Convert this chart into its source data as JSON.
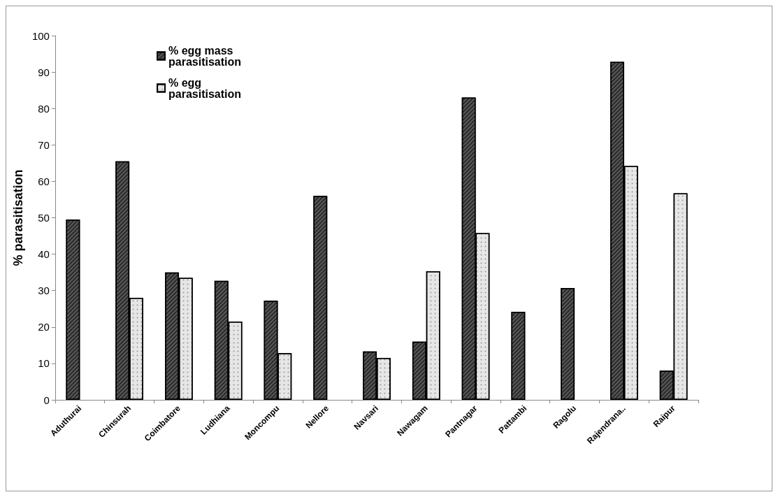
{
  "chart_data": {
    "type": "bar",
    "ylabel": "% parasitisation",
    "categories": [
      "Aduthurai",
      "Chinsurah",
      "Coimbatore",
      "Ludhiana",
      "Moncompu",
      "Nellore",
      "Navsari",
      "Nawagam",
      "Pantnagar",
      "Pattambi",
      "Ragolu",
      "Rajendrana..",
      "Raipur"
    ],
    "series": [
      {
        "name": "% egg mass parasitisation",
        "color": "#5a5a5a",
        "values": [
          49.5,
          65.5,
          35,
          32.7,
          27.2,
          56,
          13.3,
          16,
          83,
          24.2,
          30.7,
          92.8,
          8
        ]
      },
      {
        "name": "% egg parasitisation",
        "color": "#e6e6e6",
        "values": [
          null,
          28,
          33.5,
          21.5,
          12.8,
          null,
          11.5,
          35.3,
          45.8,
          null,
          null,
          64.2,
          56.7
        ]
      }
    ],
    "ylim": [
      0,
      100
    ],
    "yticks": [
      0,
      10,
      20,
      30,
      40,
      50,
      60,
      70,
      80,
      90,
      100
    ],
    "grid": false,
    "legend": "top left"
  }
}
